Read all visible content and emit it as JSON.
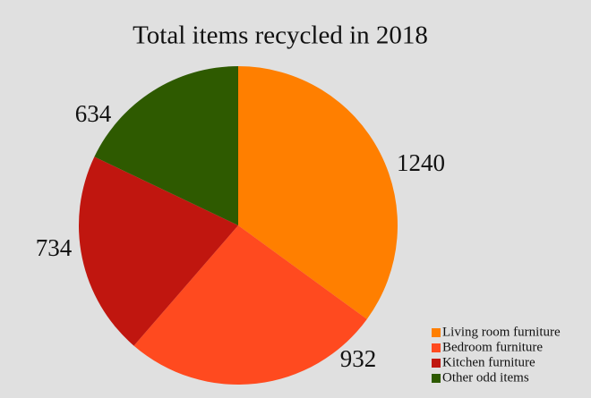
{
  "chart_data": {
    "type": "pie",
    "title": "Total items recycled in 2018",
    "categories": [
      "Living room furniture",
      "Bedroom furniture",
      "Kitchen furniture",
      "Other odd items"
    ],
    "values": [
      1240,
      932,
      734,
      634
    ],
    "colors": [
      "#ff7f00",
      "#ff4a1f",
      "#c0160f",
      "#2e5a00"
    ],
    "legend": "lower right"
  }
}
